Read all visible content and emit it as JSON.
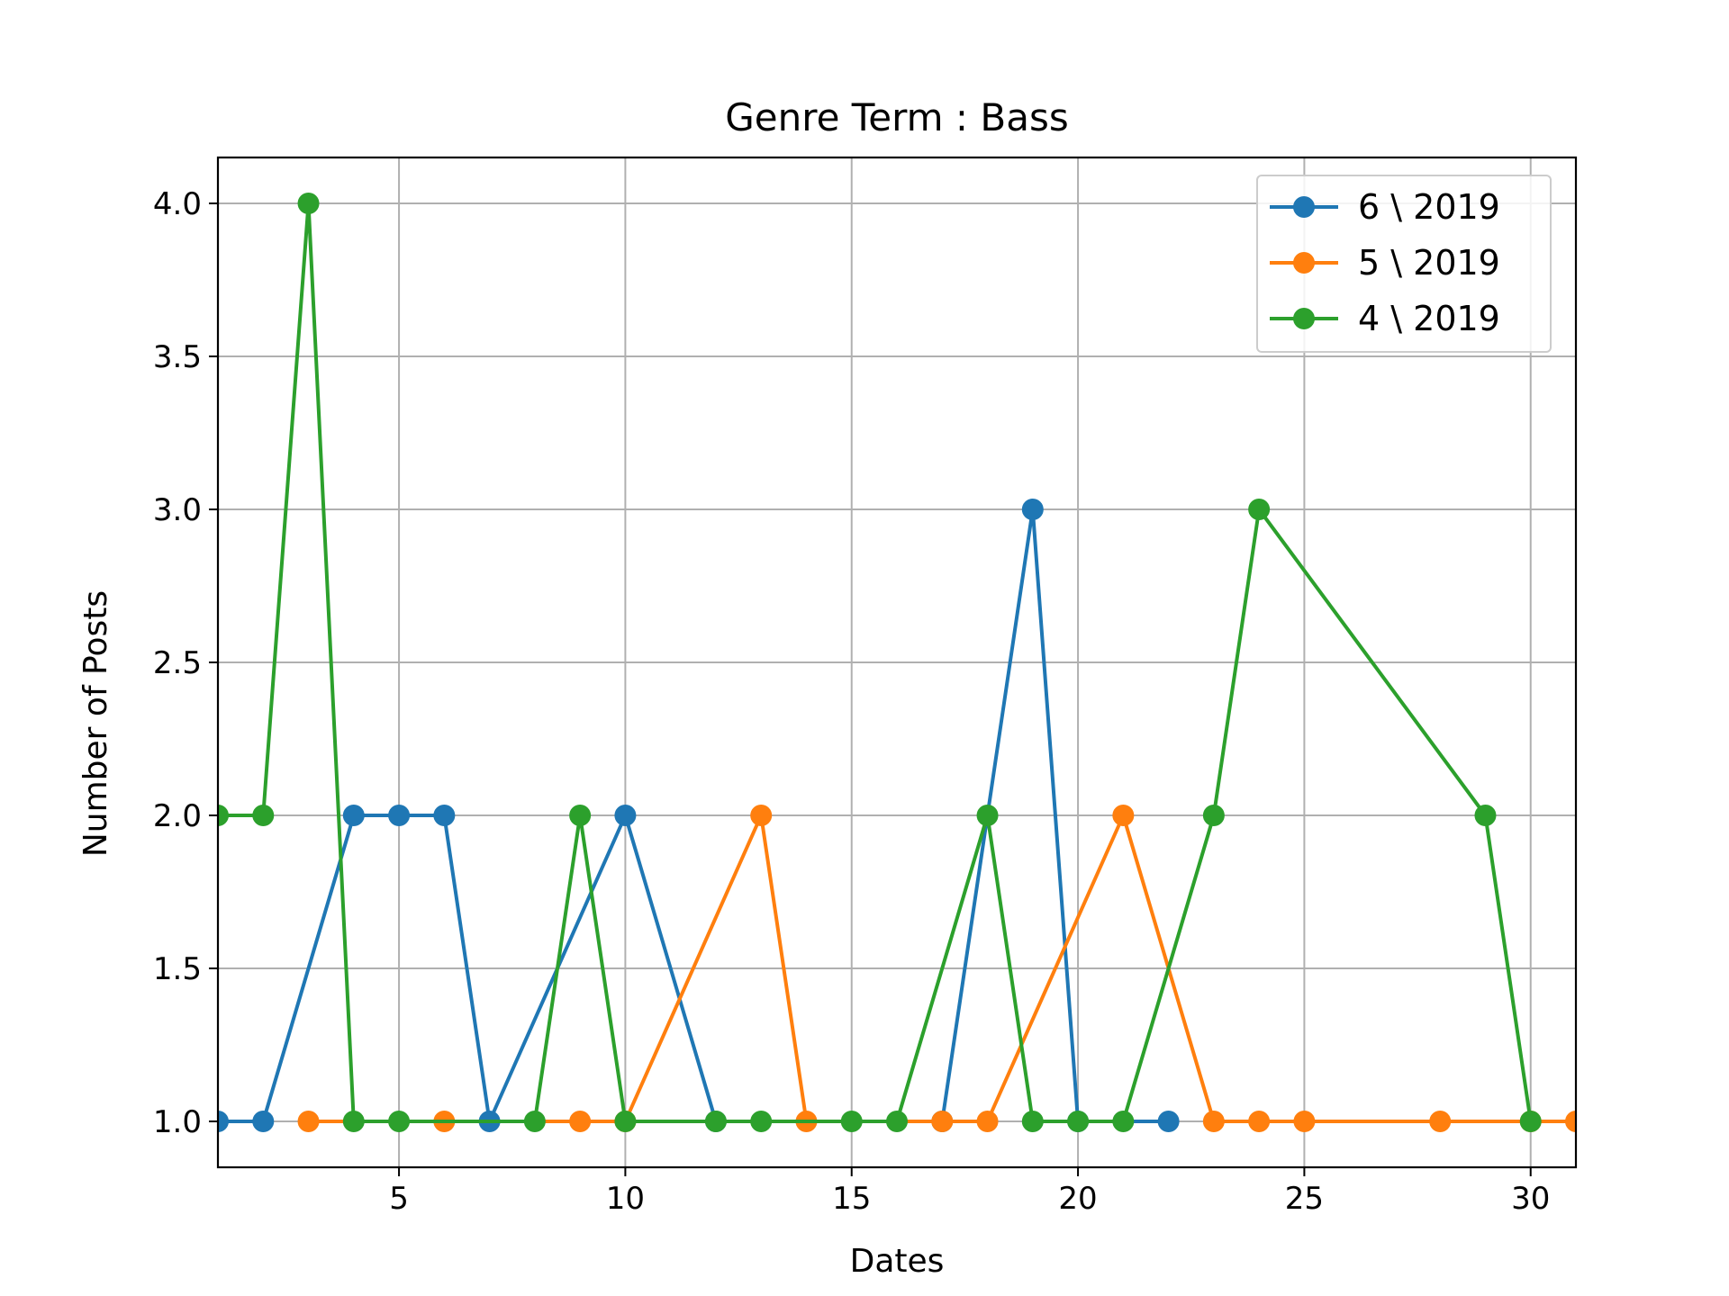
{
  "chart_data": {
    "type": "line",
    "title": "Genre Term : Bass",
    "xlabel": "Dates",
    "ylabel": "Number of Posts",
    "xlim": [
      1,
      31
    ],
    "ylim": [
      0.85,
      4.15
    ],
    "xticks": [
      5,
      10,
      15,
      20,
      25,
      30
    ],
    "yticks": [
      1.0,
      1.5,
      2.0,
      2.5,
      3.0,
      3.5,
      4.0
    ],
    "ytick_labels": [
      "1.0",
      "1.5",
      "2.0",
      "2.5",
      "3.0",
      "3.5",
      "4.0"
    ],
    "grid": true,
    "legend_position": "top-right",
    "series": [
      {
        "name": "6 \\ 2019",
        "color": "#1f77b4",
        "x": [
          1,
          2,
          4,
          5,
          6,
          7,
          10,
          12,
          17,
          19,
          20,
          22
        ],
        "y": [
          1,
          1,
          2,
          2,
          2,
          1,
          2,
          1,
          1,
          3,
          1,
          1
        ]
      },
      {
        "name": "5 \\ 2019",
        "color": "#ff7f0e",
        "x": [
          3,
          6,
          9,
          10,
          13,
          14,
          17,
          18,
          21,
          23,
          24,
          25,
          28,
          30,
          31
        ],
        "y": [
          1,
          1,
          1,
          1,
          2,
          1,
          1,
          1,
          2,
          1,
          1,
          1,
          1,
          1,
          1
        ]
      },
      {
        "name": "4 \\ 2019",
        "color": "#2ca02c",
        "x": [
          1,
          2,
          3,
          4,
          5,
          8,
          9,
          10,
          12,
          13,
          15,
          16,
          18,
          19,
          20,
          21,
          23,
          24,
          29,
          30
        ],
        "y": [
          2,
          2,
          4,
          1,
          1,
          1,
          2,
          1,
          1,
          1,
          1,
          1,
          2,
          1,
          1,
          1,
          2,
          3,
          2,
          1
        ]
      }
    ]
  }
}
